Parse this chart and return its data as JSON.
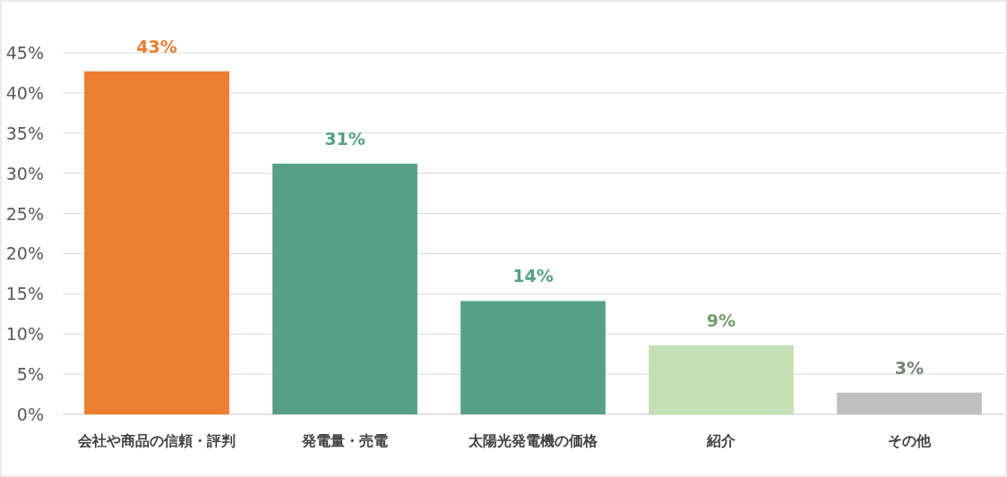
{
  "chart_data": {
    "type": "bar",
    "categories": [
      "会社や商品の信頼・評判",
      "発電量・売電",
      "太陽光発電機の価格",
      "紹介",
      "その他"
    ],
    "values": [
      42.7,
      31.2,
      14.1,
      8.6,
      2.7
    ],
    "value_labels": [
      "43%",
      "31%",
      "14%",
      "9%",
      "3%"
    ],
    "colors": [
      "#ed7d31",
      "#55a087",
      "#55a087",
      "#c5e0b4",
      "#bfbfbf"
    ],
    "ylim": [
      0,
      45
    ],
    "yticks": [
      {
        "value": 0,
        "label": "0%"
      },
      {
        "value": 5,
        "label": "5%"
      },
      {
        "value": 10,
        "label": "10%"
      },
      {
        "value": 15,
        "label": "15%"
      },
      {
        "value": 20,
        "label": "20%"
      },
      {
        "value": 25,
        "label": "25%"
      },
      {
        "value": 30,
        "label": "30%"
      },
      {
        "value": 35,
        "label": "35%"
      },
      {
        "value": 40,
        "label": "40%"
      },
      {
        "value": 45,
        "label": "45%"
      }
    ],
    "grid": "y"
  }
}
